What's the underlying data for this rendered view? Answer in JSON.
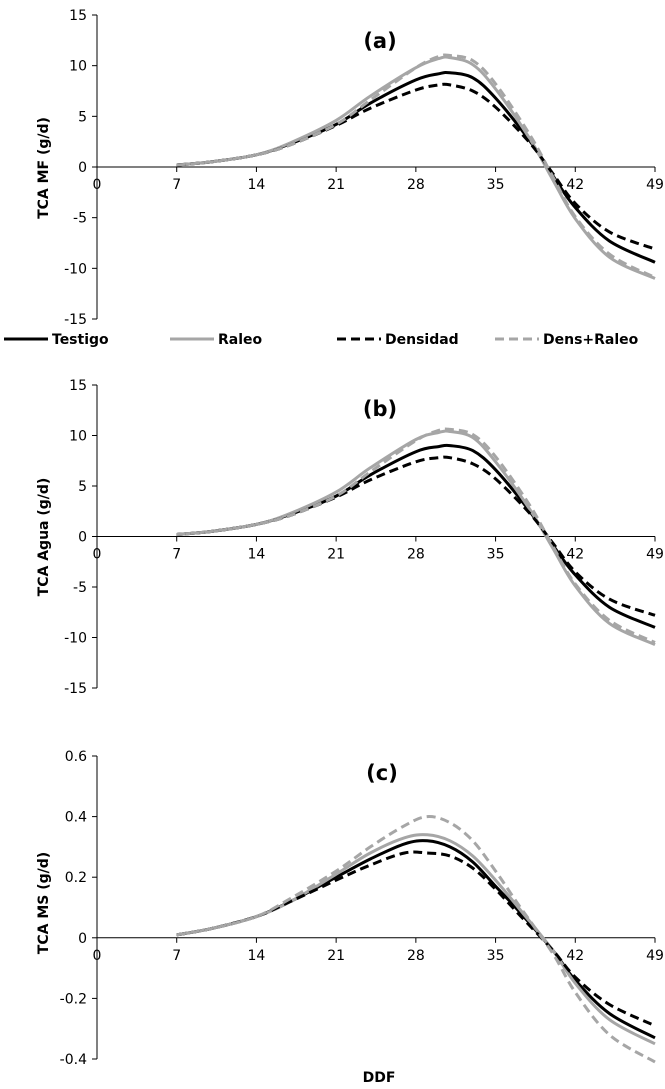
{
  "chart_data": [
    {
      "type": "line",
      "panel_label": "(a)",
      "ylabel": "TCA MF (g/d)",
      "xlabel": "",
      "xlim": [
        0,
        49
      ],
      "xticks": [
        0,
        7,
        14,
        21,
        28,
        35,
        42,
        49
      ],
      "ylim": [
        -15,
        15
      ],
      "yticks": [
        -15,
        -10,
        -5,
        0,
        5,
        10,
        15
      ],
      "x": [
        7,
        10,
        14,
        17,
        21,
        24,
        28,
        30,
        31,
        33,
        35,
        38,
        40,
        42,
        45,
        49
      ],
      "series": [
        {
          "name": "Testigo",
          "color": "#000000",
          "dash": "solid",
          "values": [
            0.2,
            0.5,
            1.2,
            2.3,
            4.2,
            6.3,
            8.6,
            9.2,
            9.3,
            8.8,
            6.8,
            2.6,
            -0.8,
            -4.0,
            -7.3,
            -9.4
          ]
        },
        {
          "name": "Raleo",
          "color": "#a6a6a6",
          "dash": "solid",
          "values": [
            0.2,
            0.5,
            1.2,
            2.4,
            4.6,
            7.0,
            9.8,
            10.7,
            10.8,
            10.1,
            7.7,
            2.8,
            -1.2,
            -5.1,
            -8.9,
            -11.0
          ]
        },
        {
          "name": "Densidad",
          "color": "#000000",
          "dash": "dashed",
          "values": [
            0.2,
            0.5,
            1.2,
            2.2,
            4.1,
            5.8,
            7.6,
            8.1,
            8.1,
            7.5,
            5.9,
            2.4,
            -0.6,
            -3.6,
            -6.4,
            -8.1
          ]
        },
        {
          "name": "Dens+Raleo",
          "color": "#a6a6a6",
          "dash": "dashed",
          "values": [
            0.2,
            0.5,
            1.2,
            2.2,
            4.2,
            6.6,
            9.8,
            10.9,
            11.0,
            10.5,
            8.2,
            3.2,
            -0.9,
            -4.9,
            -8.6,
            -10.9
          ]
        }
      ]
    },
    {
      "type": "line",
      "panel_label": "(b)",
      "ylabel": "TCA Agua (g/d)",
      "xlabel": "",
      "xlim": [
        0,
        49
      ],
      "xticks": [
        0,
        7,
        14,
        21,
        28,
        35,
        42,
        49
      ],
      "ylim": [
        -15,
        15
      ],
      "yticks": [
        -15,
        -10,
        -5,
        0,
        5,
        10,
        15
      ],
      "x": [
        7,
        10,
        14,
        17,
        21,
        24,
        28,
        30,
        31,
        33,
        35,
        38,
        40,
        42,
        45,
        49
      ],
      "series": [
        {
          "name": "Testigo",
          "color": "#000000",
          "dash": "solid",
          "values": [
            0.2,
            0.5,
            1.2,
            2.2,
            4.0,
            6.1,
            8.4,
            8.9,
            9.0,
            8.5,
            6.6,
            2.5,
            -0.8,
            -3.8,
            -7.0,
            -9.0
          ]
        },
        {
          "name": "Raleo",
          "color": "#a6a6a6",
          "dash": "solid",
          "values": [
            0.2,
            0.5,
            1.2,
            2.3,
            4.4,
            6.8,
            9.6,
            10.3,
            10.4,
            9.8,
            7.4,
            2.7,
            -1.1,
            -4.9,
            -8.6,
            -10.7
          ]
        },
        {
          "name": "Densidad",
          "color": "#000000",
          "dash": "dashed",
          "values": [
            0.2,
            0.5,
            1.2,
            2.1,
            3.9,
            5.6,
            7.4,
            7.8,
            7.8,
            7.2,
            5.7,
            2.3,
            -0.6,
            -3.5,
            -6.2,
            -7.8
          ]
        },
        {
          "name": "Dens+Raleo",
          "color": "#a6a6a6",
          "dash": "dashed",
          "values": [
            0.2,
            0.5,
            1.2,
            2.1,
            4.0,
            6.4,
            9.5,
            10.5,
            10.6,
            10.1,
            7.9,
            3.1,
            -0.9,
            -4.7,
            -8.3,
            -10.5
          ]
        }
      ]
    },
    {
      "type": "line",
      "panel_label": "(c)",
      "ylabel": "TCA MS (g/d)",
      "xlabel": "DDF",
      "xlim": [
        0,
        49
      ],
      "xticks": [
        0,
        7,
        14,
        21,
        28,
        35,
        42,
        49
      ],
      "ylim": [
        -0.4,
        0.6
      ],
      "yticks": [
        -0.4,
        -0.2,
        0,
        0.2,
        0.4,
        0.6
      ],
      "x": [
        7,
        10,
        14,
        17,
        21,
        24,
        27,
        29,
        31,
        33,
        35,
        37,
        40,
        42,
        45,
        49
      ],
      "series": [
        {
          "name": "Testigo",
          "color": "#000000",
          "dash": "solid",
          "values": [
            0.01,
            0.03,
            0.07,
            0.12,
            0.2,
            0.26,
            0.31,
            0.32,
            0.3,
            0.25,
            0.17,
            0.09,
            -0.04,
            -0.14,
            -0.25,
            -0.33
          ]
        },
        {
          "name": "Raleo",
          "color": "#a6a6a6",
          "dash": "solid",
          "values": [
            0.01,
            0.03,
            0.07,
            0.12,
            0.21,
            0.28,
            0.33,
            0.34,
            0.32,
            0.27,
            0.19,
            0.1,
            -0.04,
            -0.15,
            -0.27,
            -0.35
          ]
        },
        {
          "name": "Densidad",
          "color": "#000000",
          "dash": "dashed",
          "values": [
            0.01,
            0.03,
            0.07,
            0.12,
            0.19,
            0.24,
            0.28,
            0.28,
            0.27,
            0.23,
            0.16,
            0.08,
            -0.04,
            -0.13,
            -0.22,
            -0.29
          ]
        },
        {
          "name": "Dens+Raleo",
          "color": "#a6a6a6",
          "dash": "dashed",
          "values": [
            0.01,
            0.03,
            0.07,
            0.13,
            0.22,
            0.3,
            0.37,
            0.4,
            0.38,
            0.32,
            0.22,
            0.11,
            -0.05,
            -0.18,
            -0.32,
            -0.41
          ]
        }
      ]
    }
  ]
}
